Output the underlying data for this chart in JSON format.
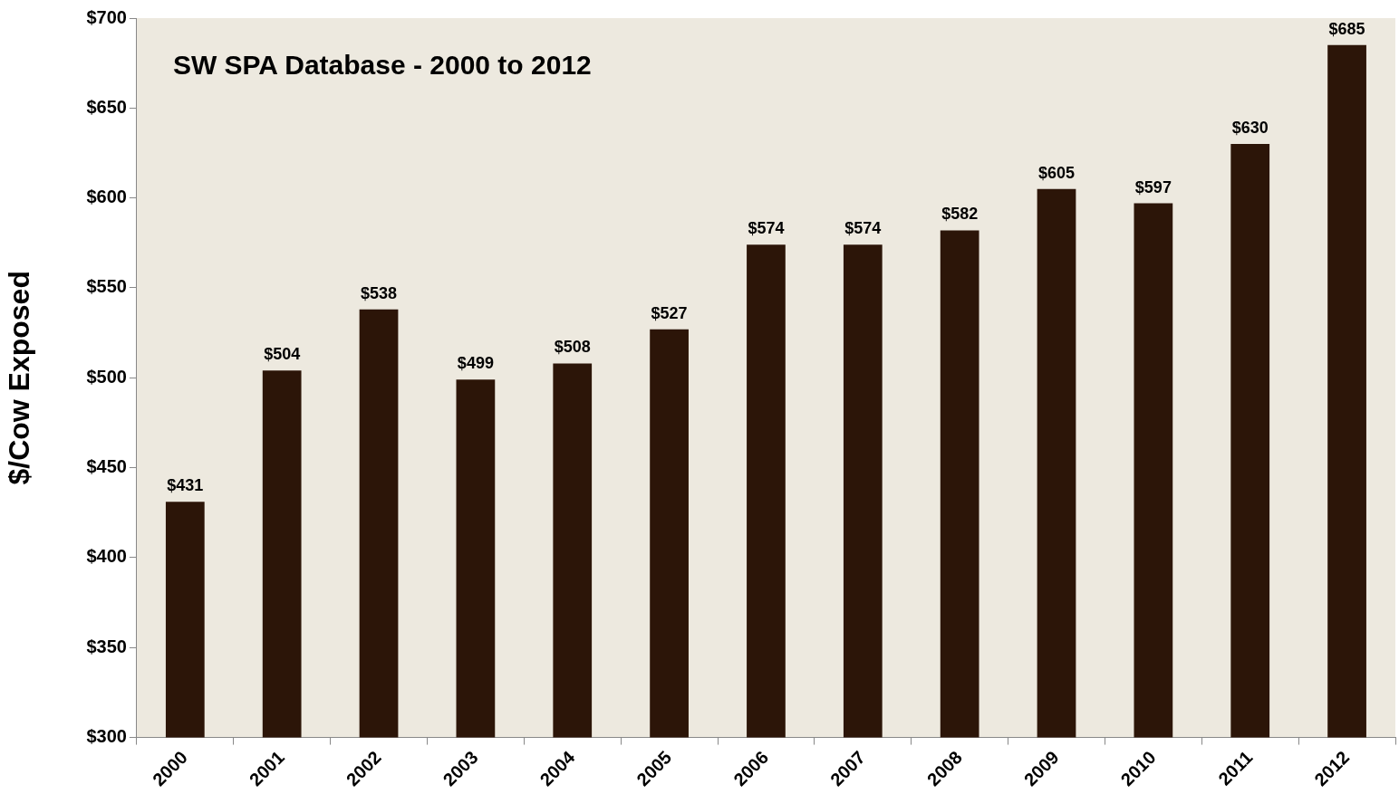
{
  "chart_data": {
    "type": "bar",
    "title": "SW SPA Database - 2000 to 2012",
    "ylabel": "$/Cow Exposed",
    "categories": [
      "2000",
      "2001",
      "2002",
      "2003",
      "2004",
      "2005",
      "2006",
      "2007",
      "2008",
      "2009",
      "2010",
      "2011",
      "2012"
    ],
    "values": [
      431,
      504,
      538,
      499,
      508,
      527,
      574,
      574,
      582,
      605,
      597,
      630,
      685
    ],
    "value_labels": [
      "$431",
      "$504",
      "$538",
      "$499",
      "$508",
      "$527",
      "$574",
      "$574",
      "$582",
      "$605",
      "$597",
      "$630",
      "$685"
    ],
    "color": "#2c1508",
    "ylim": [
      300,
      700
    ],
    "yticks": [
      {
        "value": 300,
        "label": "$300"
      },
      {
        "value": 350,
        "label": "$350"
      },
      {
        "value": 400,
        "label": "$400"
      },
      {
        "value": 450,
        "label": "$450"
      },
      {
        "value": 500,
        "label": "$500"
      },
      {
        "value": 550,
        "label": "$550"
      },
      {
        "value": 600,
        "label": "$600"
      },
      {
        "value": 650,
        "label": "$650"
      },
      {
        "value": 700,
        "label": "$700"
      }
    ],
    "grid": false,
    "legend": false
  }
}
